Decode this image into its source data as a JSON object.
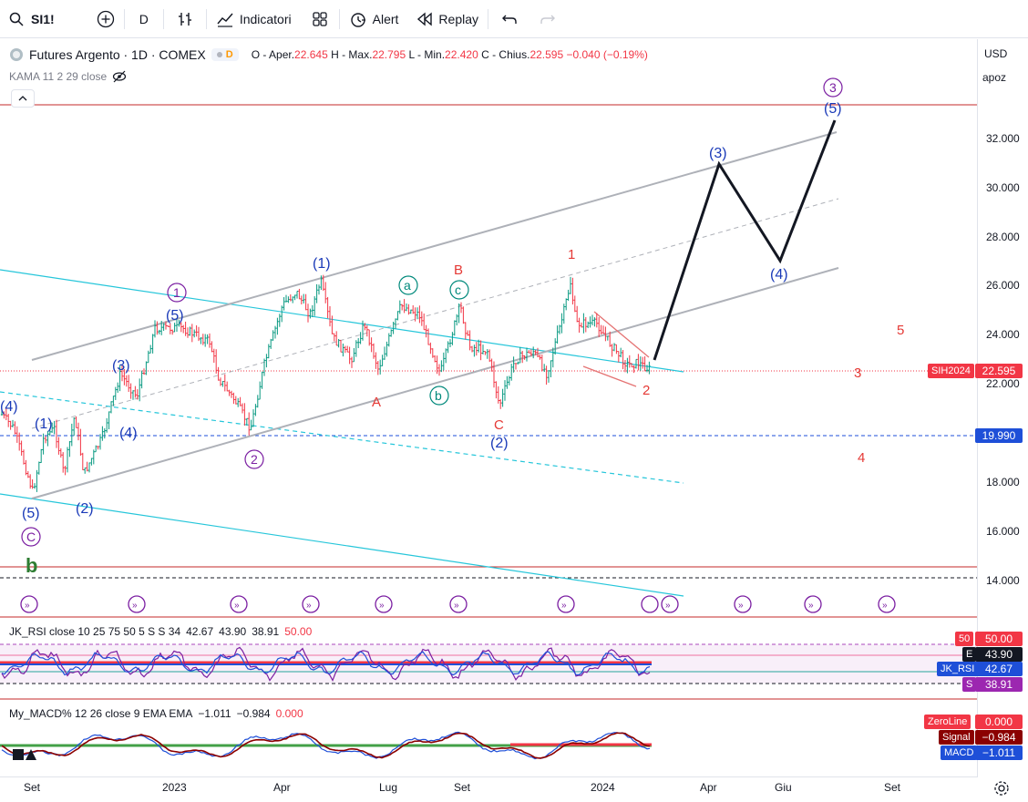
{
  "toolbar": {
    "symbol": "SI1!",
    "interval": "D",
    "indicators_label": "Indicatori",
    "alert_label": "Alert",
    "replay_label": "Replay"
  },
  "legend": {
    "title": "Futures Argento · 1D · COMEX",
    "pill_d": "D",
    "o_label": "O - Aper.",
    "o_value": "22.645",
    "h_label": "H - Max.",
    "h_value": "22.795",
    "l_label": "L - Min.",
    "l_value": "22.420",
    "c_label": "C - Chius.",
    "c_value": "22.595",
    "change": "−0.040 (−0.19%)",
    "kama": "KAMA 11 2 29 close"
  },
  "price_scale": {
    "currency": "USD",
    "mode": "apoz",
    "ticks": [
      "32.000",
      "30.000",
      "28.000",
      "26.000",
      "24.000",
      "22.000",
      "18.000",
      "16.000",
      "14.000"
    ],
    "current_symbol": "SIH2024",
    "current_price": "22.595",
    "level_price": "19.990"
  },
  "time_axis": {
    "labels": [
      "Set",
      "2023",
      "Apr",
      "Lug",
      "Set",
      "2024",
      "Apr",
      "Giu",
      "Set"
    ]
  },
  "rsi_pane": {
    "label": "JK_RSI close 10 25 75 50 5 S S 34",
    "v1": "42.67",
    "v2": "43.90",
    "v3": "38.91",
    "v4": "50.00",
    "badge_50_key": "50",
    "badge_50": "50.00",
    "badge_e_key": "E",
    "badge_e": "43.90",
    "badge_rsi_key": "JK_RSI",
    "badge_rsi": "42.67",
    "badge_s_key": "S",
    "badge_s": "38.91"
  },
  "macd_pane": {
    "label": "My_MACD% 12 26 close 9 EMA EMA",
    "v1": "−1.011",
    "v2": "−0.984",
    "v3": "0.000",
    "zero_key": "ZeroLine",
    "zero_val": "0.000",
    "signal_key": "Signal",
    "signal_val": "−0.984",
    "macd_key": "MACD",
    "macd_val": "−1.011"
  },
  "waves": {
    "blue": [
      "(4)",
      "(1)",
      "(5)",
      "(2)",
      "(3)",
      "(4)",
      "(5)",
      "(1)",
      "(2)",
      "(3)",
      "(4)",
      "(5)"
    ],
    "purple": [
      "1",
      "2",
      "3",
      "C"
    ],
    "green": [
      "a",
      "b",
      "c"
    ],
    "green_b": "b",
    "red": [
      "B",
      "A",
      "C",
      "1",
      "2",
      "3",
      "4",
      "5"
    ]
  },
  "colors": {
    "accent": "#2962ff",
    "wave_blue": "#1a3ab8",
    "wave_purple": "#7b1fa2",
    "wave_green": "#00897b",
    "wave_red": "#e53935",
    "up": "#089981",
    "down": "#f23645"
  }
}
